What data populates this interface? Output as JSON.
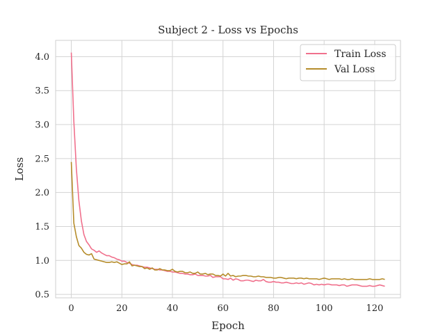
{
  "chart_data": {
    "type": "line",
    "title": "Subject 2 - Loss vs Epochs",
    "xlabel": "Epoch",
    "ylabel": "Loss",
    "xlim": [
      -6.2,
      130.2
    ],
    "ylim": [
      0.45,
      4.24
    ],
    "xticks": [
      0,
      20,
      40,
      60,
      80,
      100,
      120
    ],
    "yticks": [
      0.5,
      1.0,
      1.5,
      2.0,
      2.5,
      3.0,
      3.5,
      4.0
    ],
    "grid": true,
    "legend_position": "top-right",
    "series": [
      {
        "name": "Train Loss",
        "color": "#f0708c",
        "x": [
          0,
          1,
          2,
          3,
          4,
          5,
          6,
          7,
          8,
          9,
          10,
          11,
          12,
          13,
          14,
          15,
          16,
          17,
          18,
          19,
          20,
          21,
          22,
          23,
          24,
          25,
          26,
          27,
          28,
          29,
          30,
          31,
          32,
          33,
          34,
          35,
          36,
          37,
          38,
          39,
          40,
          41,
          42,
          43,
          44,
          45,
          46,
          47,
          48,
          49,
          50,
          51,
          52,
          53,
          54,
          55,
          56,
          57,
          58,
          59,
          60,
          61,
          62,
          63,
          64,
          65,
          66,
          67,
          68,
          69,
          70,
          71,
          72,
          73,
          74,
          75,
          76,
          77,
          78,
          79,
          80,
          81,
          82,
          83,
          84,
          85,
          86,
          87,
          88,
          89,
          90,
          91,
          92,
          93,
          94,
          95,
          96,
          97,
          98,
          99,
          100,
          101,
          102,
          103,
          104,
          105,
          106,
          107,
          108,
          109,
          110,
          111,
          112,
          113,
          114,
          115,
          116,
          117,
          118,
          119,
          120,
          121,
          122,
          123,
          124
        ],
        "values": [
          4.06,
          3.05,
          2.35,
          1.88,
          1.58,
          1.38,
          1.28,
          1.23,
          1.17,
          1.15,
          1.12,
          1.14,
          1.11,
          1.09,
          1.07,
          1.07,
          1.05,
          1.04,
          1.02,
          1.01,
          0.99,
          0.99,
          0.97,
          0.96,
          0.94,
          0.93,
          0.93,
          0.92,
          0.91,
          0.9,
          0.9,
          0.89,
          0.88,
          0.87,
          0.87,
          0.86,
          0.86,
          0.85,
          0.84,
          0.84,
          0.83,
          0.83,
          0.82,
          0.81,
          0.81,
          0.8,
          0.8,
          0.79,
          0.79,
          0.8,
          0.78,
          0.78,
          0.78,
          0.77,
          0.77,
          0.78,
          0.75,
          0.76,
          0.76,
          0.76,
          0.73,
          0.73,
          0.72,
          0.74,
          0.71,
          0.73,
          0.72,
          0.7,
          0.7,
          0.71,
          0.71,
          0.7,
          0.69,
          0.71,
          0.7,
          0.7,
          0.72,
          0.69,
          0.68,
          0.68,
          0.69,
          0.68,
          0.68,
          0.67,
          0.67,
          0.68,
          0.67,
          0.66,
          0.66,
          0.67,
          0.66,
          0.67,
          0.65,
          0.66,
          0.67,
          0.66,
          0.64,
          0.65,
          0.64,
          0.65,
          0.64,
          0.65,
          0.65,
          0.64,
          0.64,
          0.64,
          0.63,
          0.64,
          0.64,
          0.62,
          0.63,
          0.64,
          0.64,
          0.64,
          0.63,
          0.62,
          0.62,
          0.62,
          0.63,
          0.62,
          0.62,
          0.63,
          0.64,
          0.63,
          0.62
        ]
      },
      {
        "name": "Val Loss",
        "color": "#b58c2a",
        "x": [
          0,
          1,
          2,
          3,
          4,
          5,
          6,
          7,
          8,
          9,
          10,
          11,
          12,
          13,
          14,
          15,
          16,
          17,
          18,
          19,
          20,
          21,
          22,
          23,
          24,
          25,
          26,
          27,
          28,
          29,
          30,
          31,
          32,
          33,
          34,
          35,
          36,
          37,
          38,
          39,
          40,
          41,
          42,
          43,
          44,
          45,
          46,
          47,
          48,
          49,
          50,
          51,
          52,
          53,
          54,
          55,
          56,
          57,
          58,
          59,
          60,
          61,
          62,
          63,
          64,
          65,
          66,
          67,
          68,
          69,
          70,
          71,
          72,
          73,
          74,
          75,
          76,
          77,
          78,
          79,
          80,
          81,
          82,
          83,
          84,
          85,
          86,
          87,
          88,
          89,
          90,
          91,
          92,
          93,
          94,
          95,
          96,
          97,
          98,
          99,
          100,
          101,
          102,
          103,
          104,
          105,
          106,
          107,
          108,
          109,
          110,
          111,
          112,
          113,
          114,
          115,
          116,
          117,
          118,
          119,
          120,
          121,
          122,
          123,
          124
        ],
        "values": [
          2.45,
          1.55,
          1.35,
          1.22,
          1.18,
          1.12,
          1.09,
          1.08,
          1.1,
          1.02,
          1.01,
          1.0,
          0.99,
          0.98,
          0.97,
          0.97,
          0.98,
          0.97,
          0.98,
          0.96,
          0.94,
          0.95,
          0.95,
          0.98,
          0.92,
          0.93,
          0.92,
          0.91,
          0.91,
          0.88,
          0.89,
          0.87,
          0.89,
          0.86,
          0.86,
          0.88,
          0.86,
          0.86,
          0.85,
          0.85,
          0.87,
          0.84,
          0.83,
          0.84,
          0.84,
          0.82,
          0.82,
          0.83,
          0.81,
          0.81,
          0.83,
          0.8,
          0.8,
          0.81,
          0.79,
          0.8,
          0.8,
          0.78,
          0.78,
          0.77,
          0.8,
          0.77,
          0.81,
          0.77,
          0.78,
          0.76,
          0.77,
          0.77,
          0.78,
          0.78,
          0.77,
          0.77,
          0.76,
          0.76,
          0.77,
          0.76,
          0.76,
          0.75,
          0.75,
          0.75,
          0.74,
          0.74,
          0.75,
          0.75,
          0.74,
          0.73,
          0.74,
          0.74,
          0.74,
          0.73,
          0.74,
          0.74,
          0.73,
          0.74,
          0.73,
          0.73,
          0.73,
          0.73,
          0.72,
          0.73,
          0.74,
          0.73,
          0.72,
          0.73,
          0.73,
          0.73,
          0.73,
          0.72,
          0.73,
          0.72,
          0.72,
          0.73,
          0.72,
          0.72,
          0.72,
          0.72,
          0.72,
          0.72,
          0.73,
          0.72,
          0.72,
          0.72,
          0.72,
          0.73,
          0.72
        ]
      }
    ]
  }
}
